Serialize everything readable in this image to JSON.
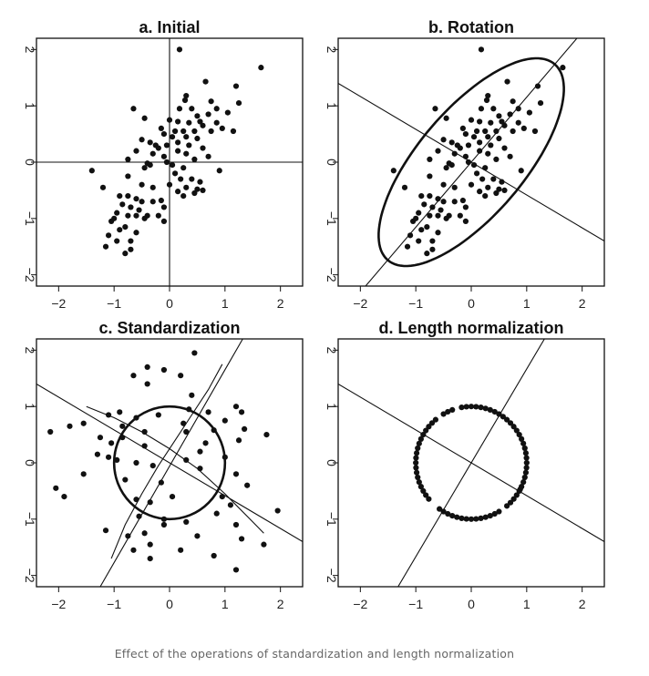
{
  "caption": "Effect of the operations of standardization and length normalization",
  "chart_data": [
    {
      "type": "scatter",
      "title": "a. Initial",
      "xlim": [
        -2.4,
        2.4
      ],
      "ylim": [
        -2.2,
        2.2
      ],
      "xticks": [
        "−2",
        "−1",
        "0",
        "1",
        "2"
      ],
      "yticks": [
        "−2",
        "−1",
        "0",
        "1",
        "2"
      ],
      "reference_lines": [
        {
          "kind": "vline",
          "x": 0
        },
        {
          "kind": "hline",
          "y": 0
        }
      ],
      "points": [
        [
          0.18,
          2.0
        ],
        [
          1.65,
          1.68
        ],
        [
          1.2,
          1.35
        ],
        [
          1.25,
          1.05
        ],
        [
          0.65,
          1.43
        ],
        [
          0.3,
          1.18
        ],
        [
          0.28,
          1.1
        ],
        [
          0.75,
          1.08
        ],
        [
          -0.65,
          0.95
        ],
        [
          0.18,
          0.95
        ],
        [
          0.4,
          0.95
        ],
        [
          0.85,
          0.95
        ],
        [
          1.05,
          0.88
        ],
        [
          0.5,
          0.82
        ],
        [
          0.7,
          0.85
        ],
        [
          -0.45,
          0.78
        ],
        [
          0.0,
          0.75
        ],
        [
          0.15,
          0.72
        ],
        [
          0.35,
          0.7
        ],
        [
          0.55,
          0.72
        ],
        [
          0.85,
          0.7
        ],
        [
          0.6,
          0.65
        ],
        [
          0.95,
          0.6
        ],
        [
          1.15,
          0.55
        ],
        [
          -0.15,
          0.6
        ],
        [
          0.25,
          0.55
        ],
        [
          0.45,
          0.55
        ],
        [
          0.75,
          0.55
        ],
        [
          -0.1,
          0.5
        ],
        [
          0.05,
          0.45
        ],
        [
          0.3,
          0.45
        ],
        [
          0.5,
          0.42
        ],
        [
          -0.5,
          0.4
        ],
        [
          -0.35,
          0.35
        ],
        [
          -0.25,
          0.3
        ],
        [
          -0.05,
          0.3
        ],
        [
          0.15,
          0.35
        ],
        [
          0.35,
          0.3
        ],
        [
          -0.2,
          0.25
        ],
        [
          -0.6,
          0.2
        ],
        [
          -0.3,
          0.15
        ],
        [
          0.15,
          0.2
        ],
        [
          0.3,
          0.15
        ],
        [
          -0.1,
          0.1
        ],
        [
          0.45,
          0.05
        ],
        [
          0.7,
          0.1
        ],
        [
          -0.75,
          0.05
        ],
        [
          -0.4,
          -0.02
        ],
        [
          0.05,
          -0.05
        ],
        [
          0.25,
          -0.1
        ],
        [
          0.9,
          -0.15
        ],
        [
          -0.45,
          -0.1
        ],
        [
          -0.35,
          -0.05
        ],
        [
          -1.4,
          -0.15
        ],
        [
          -0.75,
          -0.25
        ],
        [
          0.2,
          -0.3
        ],
        [
          0.4,
          -0.3
        ],
        [
          0.55,
          -0.35
        ],
        [
          -0.5,
          -0.4
        ],
        [
          -0.3,
          -0.45
        ],
        [
          0.0,
          -0.4
        ],
        [
          0.3,
          -0.45
        ],
        [
          0.5,
          -0.48
        ],
        [
          -1.2,
          -0.45
        ],
        [
          0.15,
          -0.52
        ],
        [
          0.45,
          -0.55
        ],
        [
          0.6,
          -0.5
        ],
        [
          -0.9,
          -0.6
        ],
        [
          -0.75,
          -0.6
        ],
        [
          -0.6,
          -0.65
        ],
        [
          -0.5,
          -0.7
        ],
        [
          -0.3,
          -0.7
        ],
        [
          -0.15,
          -0.68
        ],
        [
          0.25,
          -0.6
        ],
        [
          -0.85,
          -0.75
        ],
        [
          -0.7,
          -0.8
        ],
        [
          -0.55,
          -0.85
        ],
        [
          -0.1,
          -0.8
        ],
        [
          -0.95,
          -0.9
        ],
        [
          -0.75,
          -0.95
        ],
        [
          -0.6,
          -0.95
        ],
        [
          -0.4,
          -0.95
        ],
        [
          -1.0,
          -1.0
        ],
        [
          -0.45,
          -1.0
        ],
        [
          -1.05,
          -1.05
        ],
        [
          -0.1,
          -1.05
        ],
        [
          -0.8,
          -1.15
        ],
        [
          -0.6,
          -1.25
        ],
        [
          -1.1,
          -1.3
        ],
        [
          -0.95,
          -1.4
        ],
        [
          -1.15,
          -1.5
        ],
        [
          -0.7,
          -1.4
        ],
        [
          -0.7,
          -1.55
        ],
        [
          -0.8,
          -1.62
        ],
        [
          -0.9,
          -1.2
        ],
        [
          -0.2,
          -0.95
        ],
        [
          0.1,
          -0.2
        ],
        [
          -0.05,
          0.0
        ],
        [
          0.6,
          0.25
        ],
        [
          0.1,
          0.55
        ]
      ]
    },
    {
      "type": "scatter",
      "title": "b. Rotation",
      "xlim": [
        -2.4,
        2.4
      ],
      "ylim": [
        -2.2,
        2.2
      ],
      "xticks": [
        "−2",
        "−1",
        "0",
        "1",
        "2"
      ],
      "yticks": [
        "−2",
        "−1",
        "0",
        "1",
        "2"
      ],
      "reference_lines": [
        {
          "kind": "line",
          "x1": -2.4,
          "y1": -2.77,
          "x2": 2.4,
          "y2": 2.77
        },
        {
          "kind": "line",
          "x1": -2.4,
          "y1": 1.4,
          "x2": 2.4,
          "y2": -1.4
        }
      ],
      "ellipse": {
        "cx": 0.0,
        "cy": 0.0,
        "a": 2.3,
        "b": 0.95,
        "angle_deg": 49
      },
      "points": "same as panel a"
    },
    {
      "type": "scatter",
      "title": "c. Standardization",
      "xlim": [
        -2.4,
        2.4
      ],
      "ylim": [
        -2.2,
        2.2
      ],
      "xticks": [
        "−2",
        "−1",
        "0",
        "1",
        "2"
      ],
      "yticks": [
        "−2",
        "−1",
        "0",
        "1",
        "2"
      ],
      "reference_lines": [
        {
          "kind": "line",
          "x1": -2.4,
          "y1": 1.4,
          "x2": 2.4,
          "y2": -1.4
        },
        {
          "kind": "line",
          "x1": -1.25,
          "y1": -2.2,
          "x2": 1.32,
          "y2": 2.2
        }
      ],
      "curves": [
        {
          "points": [
            [
              -1.5,
              1.0
            ],
            [
              -1.0,
              0.8
            ],
            [
              -0.5,
              0.55
            ],
            [
              0.0,
              0.25
            ],
            [
              0.5,
              -0.1
            ],
            [
              1.0,
              -0.55
            ],
            [
              1.5,
              -1.05
            ],
            [
              1.7,
              -1.25
            ]
          ]
        },
        {
          "points": [
            [
              -1.05,
              -1.7
            ],
            [
              -0.8,
              -1.1
            ],
            [
              -0.5,
              -0.55
            ],
            [
              -0.2,
              -0.05
            ],
            [
              0.1,
              0.4
            ],
            [
              0.4,
              0.85
            ],
            [
              0.7,
              1.3
            ],
            [
              0.95,
              1.75
            ]
          ]
        }
      ],
      "circle": {
        "cx": 0.0,
        "cy": 0.0,
        "r": 1.0
      },
      "points": [
        [
          0.45,
          1.95
        ],
        [
          -0.4,
          1.7
        ],
        [
          -0.1,
          1.65
        ],
        [
          -0.65,
          1.55
        ],
        [
          0.2,
          1.55
        ],
        [
          -0.4,
          1.4
        ],
        [
          0.4,
          1.2
        ],
        [
          1.2,
          1.0
        ],
        [
          0.35,
          0.95
        ],
        [
          1.3,
          0.9
        ],
        [
          -0.9,
          0.9
        ],
        [
          0.7,
          0.9
        ],
        [
          -0.2,
          0.85
        ],
        [
          -1.1,
          0.85
        ],
        [
          -0.6,
          0.8
        ],
        [
          1.0,
          0.75
        ],
        [
          -1.55,
          0.7
        ],
        [
          -1.8,
          0.65
        ],
        [
          -0.85,
          0.65
        ],
        [
          1.35,
          0.6
        ],
        [
          0.8,
          0.58
        ],
        [
          -2.15,
          0.55
        ],
        [
          1.75,
          0.5
        ],
        [
          -0.45,
          0.55
        ],
        [
          0.3,
          0.55
        ],
        [
          -1.25,
          0.45
        ],
        [
          -0.85,
          0.45
        ],
        [
          1.25,
          0.4
        ],
        [
          -1.05,
          0.35
        ],
        [
          -0.45,
          0.3
        ],
        [
          0.65,
          0.35
        ],
        [
          0.55,
          0.2
        ],
        [
          -1.3,
          0.15
        ],
        [
          -1.1,
          0.1
        ],
        [
          1.0,
          0.1
        ],
        [
          -0.95,
          0.05
        ],
        [
          -0.6,
          0.0
        ],
        [
          0.3,
          0.05
        ],
        [
          -0.3,
          -0.05
        ],
        [
          0.55,
          -0.1
        ],
        [
          1.2,
          -0.2
        ],
        [
          -1.55,
          -0.2
        ],
        [
          -0.8,
          -0.3
        ],
        [
          1.4,
          -0.4
        ],
        [
          -2.05,
          -0.45
        ],
        [
          0.05,
          -0.6
        ],
        [
          -1.9,
          -0.6
        ],
        [
          -0.6,
          -0.65
        ],
        [
          0.95,
          -0.6
        ],
        [
          -0.35,
          -0.7
        ],
        [
          1.1,
          -0.75
        ],
        [
          1.95,
          -0.85
        ],
        [
          0.85,
          -0.9
        ],
        [
          -0.55,
          -0.95
        ],
        [
          -0.1,
          -1.0
        ],
        [
          0.3,
          -1.05
        ],
        [
          -0.1,
          -1.1
        ],
        [
          1.2,
          -1.1
        ],
        [
          -1.15,
          -1.2
        ],
        [
          -0.45,
          -1.25
        ],
        [
          0.5,
          -1.3
        ],
        [
          -0.75,
          -1.3
        ],
        [
          1.3,
          -1.35
        ],
        [
          -0.35,
          -1.45
        ],
        [
          1.7,
          -1.45
        ],
        [
          0.2,
          -1.55
        ],
        [
          -0.65,
          -1.55
        ],
        [
          0.8,
          -1.65
        ],
        [
          -0.35,
          -1.7
        ],
        [
          1.2,
          -1.9
        ],
        [
          -0.15,
          -0.35
        ],
        [
          0.25,
          0.7
        ]
      ]
    },
    {
      "type": "scatter",
      "title": "d. Length normalization",
      "xlim": [
        -2.4,
        2.4
      ],
      "ylim": [
        -2.2,
        2.2
      ],
      "xticks": [
        "−2",
        "−1",
        "0",
        "1",
        "2"
      ],
      "yticks": [
        "−2",
        "−1",
        "0",
        "1",
        "2"
      ],
      "reference_lines": [
        {
          "kind": "line",
          "x1": -2.4,
          "y1": 1.4,
          "x2": 2.4,
          "y2": -1.4
        },
        {
          "kind": "line",
          "x1": -1.32,
          "y1": -2.2,
          "x2": 1.32,
          "y2": 2.2
        }
      ],
      "angles_deg": [
        90,
        85,
        80,
        95,
        100,
        75,
        70,
        65,
        60,
        55,
        50,
        45,
        40,
        35,
        30,
        25,
        20,
        15,
        10,
        5,
        0,
        -5,
        -10,
        -15,
        -20,
        -28,
        -35,
        -40,
        -45,
        -50,
        -60,
        -70,
        -80,
        -85,
        -90,
        -95,
        -100,
        -105,
        -110,
        -115,
        -120,
        -125,
        130,
        135,
        140,
        145,
        150,
        155,
        160,
        165,
        170,
        175,
        180,
        185,
        190,
        195,
        200,
        205,
        210,
        215,
        220,
        110,
        115,
        120,
        -65,
        -75,
        -30,
        -25
      ]
    }
  ]
}
